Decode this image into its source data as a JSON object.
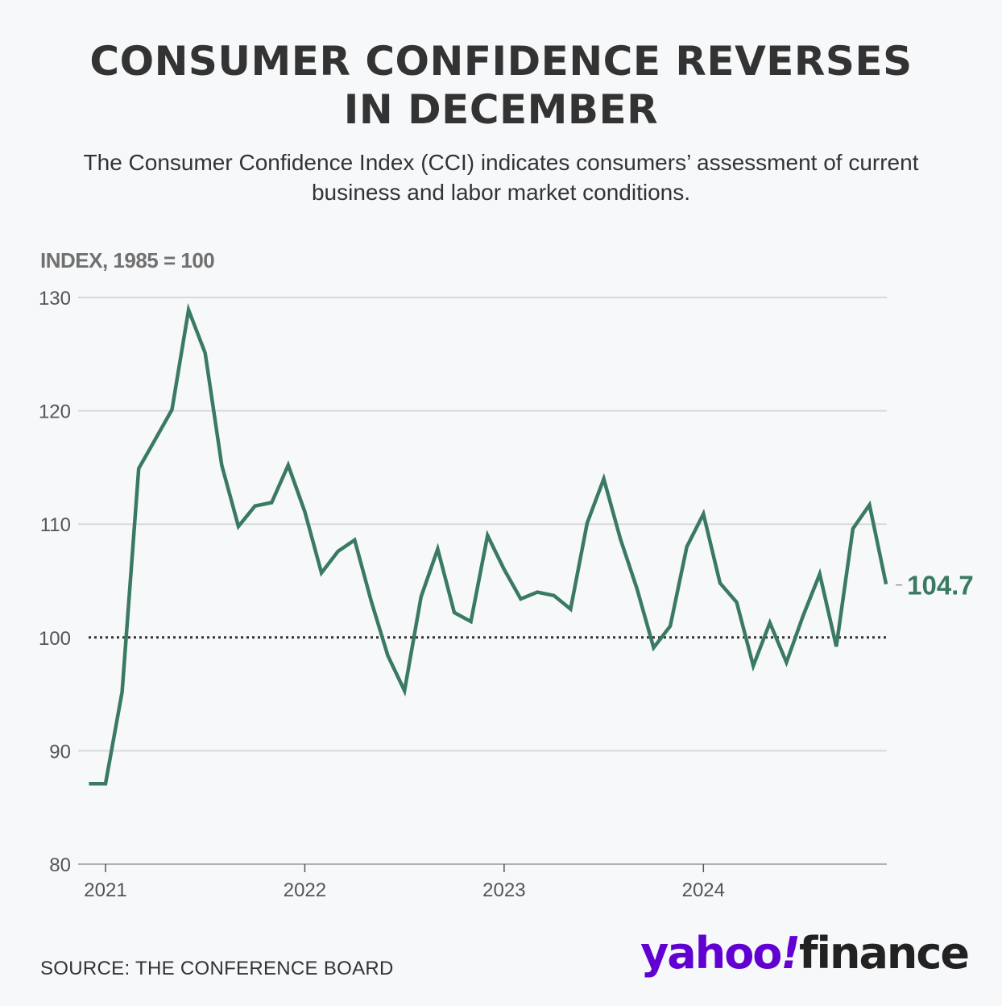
{
  "header": {
    "title_line1": "CONSUMER CONFIDENCE REVERSES",
    "title_line2": "IN DECEMBER",
    "subtitle_line1": "The Consumer Confidence Index (CCI) indicates consumers’ assessment of current",
    "subtitle_line2": "business and labor market conditions."
  },
  "footer": {
    "source": "SOURCE: THE CONFERENCE BOARD",
    "logo_yahoo": "yahoo",
    "logo_bang": "!",
    "logo_finance": "finance"
  },
  "colors": {
    "line": "#3a7a62",
    "grid": "#d8d9dd",
    "baseline": "#333333",
    "logo_purple": "#6001d2"
  },
  "chart_data": {
    "type": "line",
    "title": "CONSUMER CONFIDENCE REVERSES IN DECEMBER",
    "ylabel": "INDEX, 1985 = 100",
    "xlabel": "",
    "ylim": [
      80,
      130
    ],
    "yticks": [
      80,
      90,
      100,
      110,
      120,
      130
    ],
    "xticks": [
      {
        "label": "2021",
        "month_index": 0
      },
      {
        "label": "2022",
        "month_index": 12
      },
      {
        "label": "2023",
        "month_index": 24
      },
      {
        "label": "2024",
        "month_index": 36
      }
    ],
    "reference_line": {
      "value": 100,
      "style": "dotted"
    },
    "grid": true,
    "series": [
      {
        "name": "Consumer Confidence Index",
        "start_month_index": -1,
        "values": [
          87.1,
          87.1,
          95.2,
          114.9,
          117.5,
          120.1,
          128.9,
          125.1,
          115.2,
          109.8,
          111.6,
          111.9,
          115.2,
          111.1,
          105.7,
          107.6,
          108.6,
          103.2,
          98.4,
          95.3,
          103.6,
          107.8,
          102.2,
          101.4,
          109.0,
          106.0,
          103.4,
          104.0,
          103.7,
          102.5,
          110.1,
          114.0,
          108.7,
          104.3,
          99.1,
          101.0,
          108.0,
          110.9,
          104.8,
          103.1,
          97.5,
          101.3,
          97.8,
          101.9,
          105.6,
          99.2,
          109.6,
          111.7,
          104.7
        ]
      }
    ],
    "end_label": "104.7"
  }
}
